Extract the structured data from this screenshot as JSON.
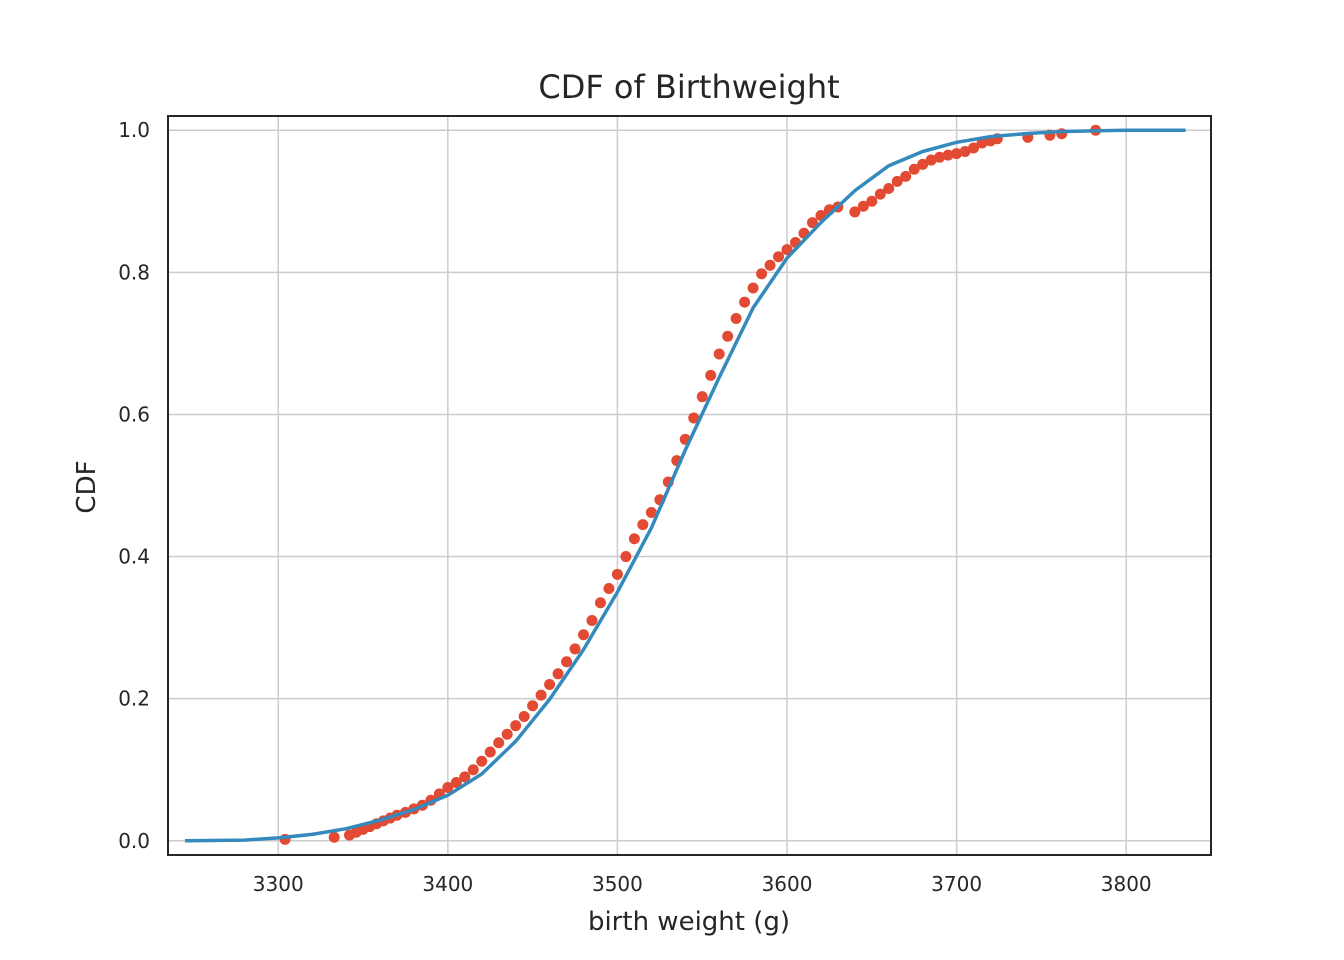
{
  "chart_data": {
    "type": "line",
    "title": "CDF of Birthweight",
    "xlabel": "birth weight (g)",
    "ylabel": "CDF",
    "xlim": [
      3235,
      3850
    ],
    "ylim": [
      -0.02,
      1.02
    ],
    "xticks": [
      3300,
      3400,
      3500,
      3600,
      3700,
      3800
    ],
    "yticks": [
      0.0,
      0.2,
      0.4,
      0.6,
      0.8,
      1.0
    ],
    "xtick_labels": [
      "3300",
      "3400",
      "3500",
      "3600",
      "3700",
      "3800"
    ],
    "ytick_labels": [
      "0.0",
      "0.2",
      "0.4",
      "0.6",
      "0.8",
      "1.0"
    ],
    "grid": true,
    "colors": {
      "points": "#E24A33",
      "line": "#348ABD"
    },
    "series": [
      {
        "type": "scatter",
        "x": [
          3304,
          3333,
          3342,
          3346,
          3350,
          3354,
          3358,
          3362,
          3366,
          3370,
          3375,
          3380,
          3385,
          3390,
          3395,
          3400,
          3405,
          3410,
          3415,
          3420,
          3425,
          3430,
          3435,
          3440,
          3445,
          3450,
          3455,
          3460,
          3465,
          3470,
          3475,
          3480,
          3485,
          3490,
          3495,
          3500,
          3505,
          3510,
          3515,
          3520,
          3525,
          3530,
          3535,
          3540,
          3545,
          3550,
          3555,
          3560,
          3565,
          3570,
          3575,
          3580,
          3585,
          3590,
          3595,
          3600,
          3605,
          3610,
          3615,
          3620,
          3625,
          3630,
          3640,
          3645,
          3650,
          3655,
          3660,
          3665,
          3670,
          3675,
          3680,
          3685,
          3690,
          3695,
          3700,
          3705,
          3710,
          3715,
          3720,
          3724,
          3742,
          3755,
          3762,
          3782
        ],
        "y": [
          0.002,
          0.005,
          0.008,
          0.012,
          0.016,
          0.02,
          0.024,
          0.028,
          0.032,
          0.036,
          0.04,
          0.045,
          0.05,
          0.057,
          0.066,
          0.075,
          0.082,
          0.09,
          0.1,
          0.112,
          0.125,
          0.138,
          0.15,
          0.162,
          0.175,
          0.19,
          0.205,
          0.22,
          0.235,
          0.252,
          0.27,
          0.29,
          0.31,
          0.335,
          0.355,
          0.375,
          0.4,
          0.425,
          0.445,
          0.462,
          0.48,
          0.505,
          0.535,
          0.565,
          0.595,
          0.625,
          0.655,
          0.685,
          0.71,
          0.735,
          0.758,
          0.778,
          0.798,
          0.81,
          0.822,
          0.832,
          0.842,
          0.855,
          0.87,
          0.88,
          0.888,
          0.892,
          0.885,
          0.893,
          0.9,
          0.91,
          0.918,
          0.928,
          0.935,
          0.945,
          0.952,
          0.958,
          0.962,
          0.965,
          0.967,
          0.97,
          0.975,
          0.982,
          0.985,
          0.988,
          0.99,
          0.993,
          0.995,
          1.0
        ]
      },
      {
        "type": "line",
        "x": [
          3245,
          3280,
          3300,
          3320,
          3340,
          3360,
          3380,
          3400,
          3420,
          3440,
          3460,
          3480,
          3500,
          3520,
          3540,
          3560,
          3580,
          3600,
          3620,
          3640,
          3660,
          3680,
          3700,
          3720,
          3740,
          3760,
          3780,
          3800,
          3835
        ],
        "y": [
          0.0,
          0.001,
          0.004,
          0.009,
          0.017,
          0.029,
          0.044,
          0.064,
          0.094,
          0.14,
          0.199,
          0.269,
          0.35,
          0.44,
          0.55,
          0.652,
          0.75,
          0.82,
          0.87,
          0.915,
          0.95,
          0.97,
          0.983,
          0.991,
          0.995,
          0.998,
          0.999,
          1.0,
          1.0
        ]
      }
    ]
  }
}
